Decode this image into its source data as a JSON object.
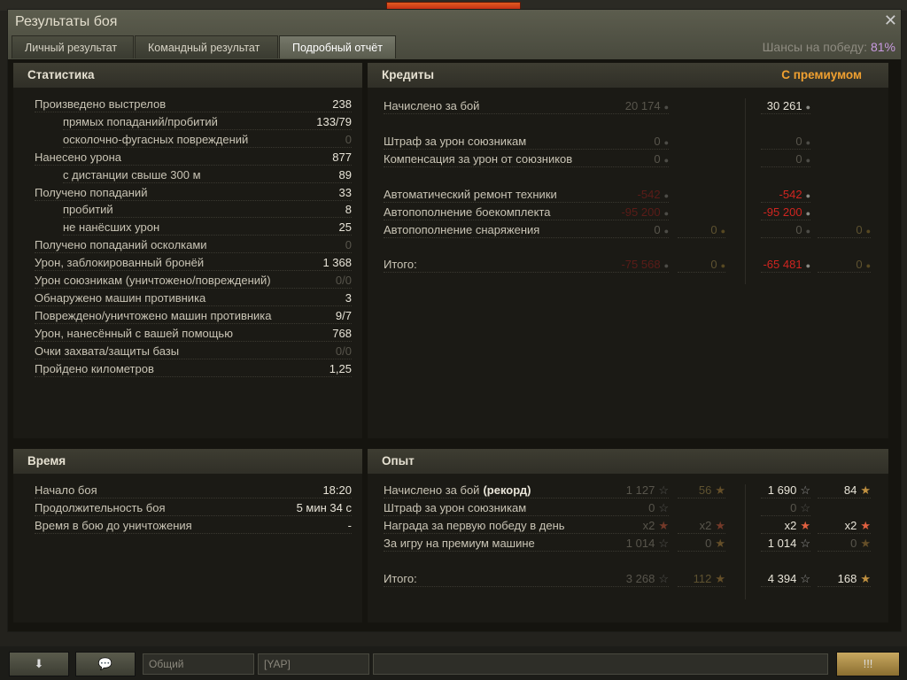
{
  "window": {
    "title": "Результаты боя",
    "close": "✕",
    "tabs": [
      "Личный результат",
      "Командный результат",
      "Подробный отчёт"
    ],
    "active_tab": 2,
    "chance_label": "Шансы на победу:",
    "chance_value": "81%"
  },
  "stats": {
    "header": "Статистика",
    "rows": [
      {
        "label": "Произведено выстрелов",
        "value": "238",
        "indent": false,
        "dim": false
      },
      {
        "label": "прямых попаданий/пробитий",
        "value": "133/79",
        "indent": true,
        "dim": false
      },
      {
        "label": "осколочно-фугасных повреждений",
        "value": "0",
        "indent": true,
        "dim": true
      },
      {
        "label": "Нанесено урона",
        "value": "877",
        "indent": false,
        "dim": false
      },
      {
        "label": "с дистанции свыше 300 м",
        "value": "89",
        "indent": true,
        "dim": false
      },
      {
        "label": "Получено попаданий",
        "value": "33",
        "indent": false,
        "dim": false
      },
      {
        "label": "пробитий",
        "value": "8",
        "indent": true,
        "dim": false
      },
      {
        "label": "не нанёсших урон",
        "value": "25",
        "indent": true,
        "dim": false
      },
      {
        "label": "Получено попаданий осколками",
        "value": "0",
        "indent": false,
        "dim": true
      },
      {
        "label": "Урон, заблокированный бронёй",
        "value": "1 368",
        "indent": false,
        "dim": false
      },
      {
        "label": "Урон союзникам (уничтожено/повреждений)",
        "value": "0/0",
        "indent": false,
        "dim": true
      },
      {
        "label": "Обнаружено машин противника",
        "value": "3",
        "indent": false,
        "dim": false
      },
      {
        "label": "Повреждено/уничтожено машин противника",
        "value": "9/7",
        "indent": false,
        "dim": false
      },
      {
        "label": "Урон, нанесённый с вашей помощью",
        "value": "768",
        "indent": false,
        "dim": false
      },
      {
        "label": "Очки захвата/защиты базы",
        "value": "0/0",
        "indent": false,
        "dim": true
      },
      {
        "label": "Пройдено километров",
        "value": "1,25",
        "indent": false,
        "dim": false
      }
    ]
  },
  "credits": {
    "header": "Кредиты",
    "premium_header": "С премиумом",
    "rows": [
      {
        "label": "Начислено за бой",
        "gap": 0,
        "cells": [
          [
            "20 174",
            "d",
            "silver"
          ],
          null,
          [
            "30 261",
            "w",
            "silver"
          ],
          null
        ]
      },
      {
        "label": "Штраф за урон союзникам",
        "gap": 1,
        "cells": [
          [
            "0",
            "d",
            "silver"
          ],
          null,
          [
            "0",
            "d",
            "silver"
          ],
          null
        ]
      },
      {
        "label": "Компенсация за урон от союзников",
        "gap": 0,
        "cells": [
          [
            "0",
            "d",
            "silver"
          ],
          null,
          [
            "0",
            "d",
            "silver"
          ],
          null
        ]
      },
      {
        "label": "Автоматический ремонт техники",
        "gap": 1,
        "cells": [
          [
            "-542",
            "dr",
            "silver"
          ],
          null,
          [
            "-542",
            "r",
            "silver"
          ],
          null
        ]
      },
      {
        "label": "Автопополнение боекомплекта",
        "gap": 0,
        "cells": [
          [
            "-95 200",
            "dr",
            "silver"
          ],
          null,
          [
            "-95 200",
            "r",
            "silver"
          ],
          null
        ]
      },
      {
        "label": "Автопополнение снаряжения",
        "gap": 0,
        "cells": [
          [
            "0",
            "d",
            "silver"
          ],
          [
            "0",
            "g",
            "gold"
          ],
          [
            "0",
            "d",
            "silver"
          ],
          [
            "0",
            "g",
            "gold"
          ]
        ]
      },
      {
        "label": "Итого:",
        "gap": 1,
        "cells": [
          [
            "-75 568",
            "dr",
            "silver"
          ],
          [
            "0",
            "g",
            "gold"
          ],
          [
            "-65 481",
            "r",
            "silver"
          ],
          [
            "0",
            "g",
            "gold"
          ]
        ]
      }
    ]
  },
  "time": {
    "header": "Время",
    "rows": [
      {
        "label": "Начало боя",
        "value": "18:20"
      },
      {
        "label": "Продолжительность боя",
        "value": "5 мин 34 с"
      },
      {
        "label": "Время в бою до уничтожения",
        "value": "-"
      }
    ]
  },
  "xp": {
    "header": "Опыт",
    "record": "(рекорд)",
    "rows": [
      {
        "label": "Начислено за бой",
        "gap": 0,
        "cells": [
          [
            "1 127",
            "d",
            "xp"
          ],
          [
            "56",
            "g",
            "freexp"
          ],
          [
            "1 690",
            "w",
            "xp"
          ],
          [
            "84",
            "w",
            "freexp"
          ]
        ]
      },
      {
        "label": "Штраф за урон союзникам",
        "gap": 0,
        "cells": [
          [
            "0",
            "d",
            "xp"
          ],
          null,
          [
            "0",
            "d",
            "xp"
          ],
          null
        ]
      },
      {
        "label": "Награда за первую победу в день",
        "gap": 0,
        "cells": [
          [
            "x2",
            "d",
            "x2"
          ],
          [
            "x2",
            "d",
            "x2"
          ],
          [
            "x2",
            "w",
            "x2"
          ],
          [
            "x2",
            "w",
            "x2"
          ]
        ]
      },
      {
        "label": "За игру на премиум машине",
        "gap": 0,
        "cells": [
          [
            "1 014",
            "d",
            "xp"
          ],
          [
            "0",
            "d",
            "freexp"
          ],
          [
            "1 014",
            "w",
            "xp"
          ],
          [
            "0",
            "d",
            "freexp"
          ]
        ]
      },
      {
        "label": "Итого:",
        "gap": 1,
        "cells": [
          [
            "3 268",
            "d",
            "xp"
          ],
          [
            "112",
            "g",
            "freexp"
          ],
          [
            "4 394",
            "w",
            "xp"
          ],
          [
            "168",
            "w",
            "freexp"
          ]
        ]
      }
    ]
  },
  "bottom": {
    "channel_general": "Общий",
    "channel_clan": "[YAP]"
  },
  "colors": {
    "premium": "#f0a030",
    "chance": "#c89ae0",
    "negative": "#d02520"
  }
}
